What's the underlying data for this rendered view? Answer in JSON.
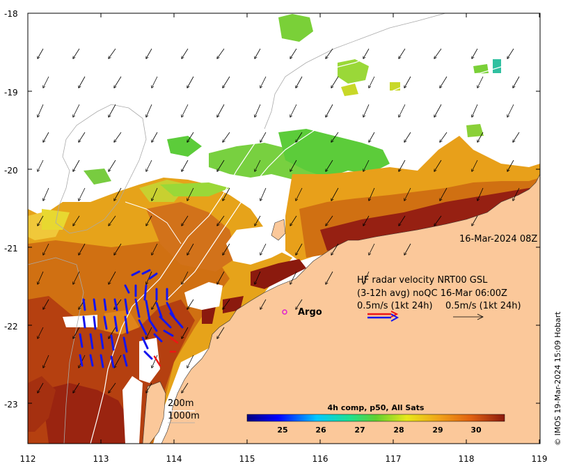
{
  "map": {
    "timestamp": "16-Mar-2024 08Z",
    "legend": {
      "line1": "HF radar velocity  NRT00 GSL",
      "line2": "(3-12h avg) noQC 16-Mar 06:00Z",
      "scale_left": "0.5m/s (1kt 24h)",
      "scale_right": "0.5m/s (1kt 24h)"
    },
    "argo_label": "Argo",
    "contours": {
      "c200": "200m",
      "c1000": "1000m"
    },
    "colorbar": {
      "title": "4h comp, p50, All Sats",
      "ticks": [
        "25",
        "26",
        "27",
        "28",
        "29",
        "30"
      ]
    },
    "axes": {
      "x_ticks": [
        "112",
        "113",
        "114",
        "115",
        "116",
        "117",
        "118",
        "119"
      ],
      "y_ticks": [
        "-18",
        "-19",
        "-20",
        "-21",
        "-22",
        "-23"
      ]
    },
    "copyright": "© IMOS 19-Mar-2024 15:09 Hobart",
    "colors": {
      "land": "#fbc89a",
      "warm": "#8b1a0e",
      "mid": "#e3a21c",
      "cool": "#5fd13a",
      "radar_blue": "#1515ee",
      "radar_red": "#ee1515",
      "argo": "#e020d0"
    }
  }
}
